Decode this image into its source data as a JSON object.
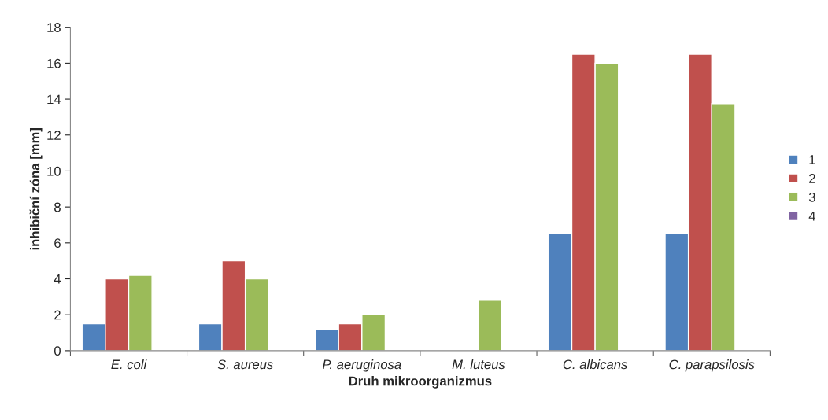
{
  "chart_data": {
    "type": "bar",
    "xlabel": "Druh mikroorganizmus",
    "ylabel": "inhibiční zóna [mm]",
    "categories": [
      "E. coli",
      "S. aureus",
      "P. aeruginosa",
      "M. luteus",
      "C. albicans",
      "C. parapsilosis"
    ],
    "series": [
      {
        "name": "1",
        "color": "#4f81bd",
        "values": [
          1.5,
          1.5,
          1.2,
          null,
          6.5,
          6.5
        ]
      },
      {
        "name": "2",
        "color": "#c0504d",
        "values": [
          4.0,
          5.0,
          1.5,
          null,
          16.5,
          16.5
        ]
      },
      {
        "name": "3",
        "color": "#9bbb59",
        "values": [
          4.2,
          4.0,
          2.0,
          2.8,
          16.0,
          13.75
        ]
      },
      {
        "name": "4",
        "color": "#8064a2",
        "values": [
          null,
          null,
          null,
          null,
          null,
          null
        ]
      }
    ],
    "ylim": [
      0,
      18
    ],
    "yticks": [
      0,
      2,
      4,
      6,
      8,
      10,
      12,
      14,
      16,
      18
    ],
    "grid": false,
    "legend": "right"
  }
}
